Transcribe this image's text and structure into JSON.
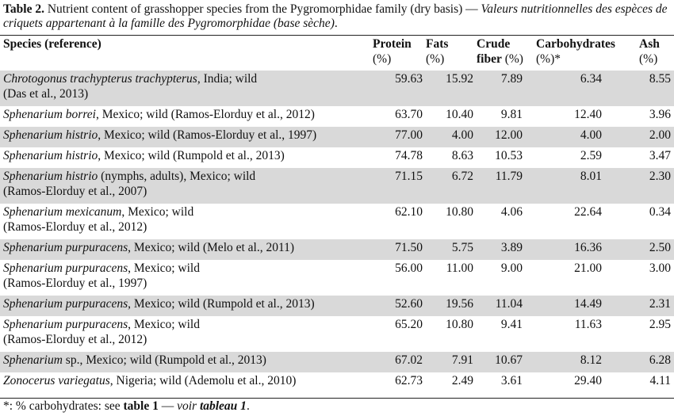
{
  "caption": {
    "label": "Table 2.",
    "english": " Nutrient content of grasshopper species from the Pygromorphidae family (dry basis) — ",
    "french": "Valeurs nutritionnelles des espèces de criquets appartenant à la famille des Pygromorphidae (base sèche)",
    "end": "."
  },
  "headers": {
    "species": "Species (reference)",
    "protein": "Protein",
    "protein_unit": "(%)",
    "fats": "Fats",
    "fats_unit": "(%)",
    "fiber": "Crude",
    "fiber_2": "fiber",
    "fiber_unit": " (%)",
    "carb": "Carbohydrates",
    "carb_unit": "(%)*",
    "ash": "Ash",
    "ash_unit": "(%)"
  },
  "rows": [
    {
      "name": "Chrotogonus trachypterus trachypterus",
      "rest": ", India; wild",
      "rest2": "(Das et al., 2013)",
      "protein": "59.63",
      "fats": "15.92",
      "fiber": "7.89",
      "carb": "6.34",
      "ash": "8.55"
    },
    {
      "name": "Sphenarium borrei",
      "rest": ", Mexico; wild (Ramos-Elorduy et al., 2012)",
      "rest2": "",
      "protein": "63.70",
      "fats": "10.40",
      "fiber": "9.81",
      "carb": "12.40",
      "ash": "3.96"
    },
    {
      "name": "Sphenarium histrio",
      "rest": ", Mexico; wild (Ramos-Elorduy et al., 1997)",
      "rest2": "",
      "protein": "77.00",
      "fats": "4.00",
      "fiber": "12.00",
      "carb": "4.00",
      "ash": "2.00"
    },
    {
      "name": "Sphenarium histrio",
      "rest": ", Mexico; wild (Rumpold et al., 2013)",
      "rest2": "",
      "protein": "74.78",
      "fats": "8.63",
      "fiber": "10.53",
      "carb": "2.59",
      "ash": "3.47"
    },
    {
      "name": "Sphenarium histrio",
      "rest": " (nymphs, adults), Mexico; wild",
      "rest2": "(Ramos-Elorduy et al., 2007)",
      "protein": "71.15",
      "fats": "6.72",
      "fiber": "11.79",
      "carb": "8.01",
      "ash": "2.30"
    },
    {
      "name": "Sphenarium mexicanum",
      "rest": ", Mexico; wild",
      "rest2": "(Ramos-Elorduy et al., 2012)",
      "protein": "62.10",
      "fats": "10.80",
      "fiber": "4.06",
      "carb": "22.64",
      "ash": "0.34"
    },
    {
      "name": "Sphenarium purpuracens",
      "rest": ", Mexico; wild (Melo et al., 2011)",
      "rest2": "",
      "protein": "71.50",
      "fats": "5.75",
      "fiber": "3.89",
      "carb": "16.36",
      "ash": "2.50"
    },
    {
      "name": "Sphenarium purpuracens",
      "rest": ", Mexico; wild",
      "rest2": "(Ramos-Elorduy et al., 1997)",
      "protein": "56.00",
      "fats": "11.00",
      "fiber": "9.00",
      "carb": "21.00",
      "ash": "3.00"
    },
    {
      "name": "Sphenarium purpuracens",
      "rest": ", Mexico; wild (Rumpold et al., 2013)",
      "rest2": "",
      "protein": "52.60",
      "fats": "19.56",
      "fiber": "11.04",
      "carb": "14.49",
      "ash": "2.31"
    },
    {
      "name": "Sphenarium purpuracens",
      "rest": ", Mexico; wild",
      "rest2": "(Ramos-Elorduy et al., 2012)",
      "protein": "65.20",
      "fats": "10.80",
      "fiber": "9.41",
      "carb": "11.63",
      "ash": "2.95"
    },
    {
      "name": "Sphenarium",
      "rest": " sp., Mexico; wild (Rumpold et al., 2013)",
      "rest2": "",
      "protein": "67.02",
      "fats": "7.91",
      "fiber": "10.67",
      "carb": "8.12",
      "ash": "6.28"
    },
    {
      "name": "Zonocerus variegatus",
      "rest": ", Nigeria; wild (Ademolu et al., 2010)",
      "rest2": "",
      "protein": "62.73",
      "fats": "2.49",
      "fiber": "3.61",
      "carb": "29.40",
      "ash": "4.11"
    }
  ],
  "footnote": {
    "prefix": "*: % carbohydrates: see ",
    "ref": "table 1",
    "sep": " — ",
    "fr": "voir ",
    "fr_ref": "tableau 1",
    "end": "."
  },
  "colors": {
    "shade": "#d9d9d9",
    "rule": "#222222"
  }
}
